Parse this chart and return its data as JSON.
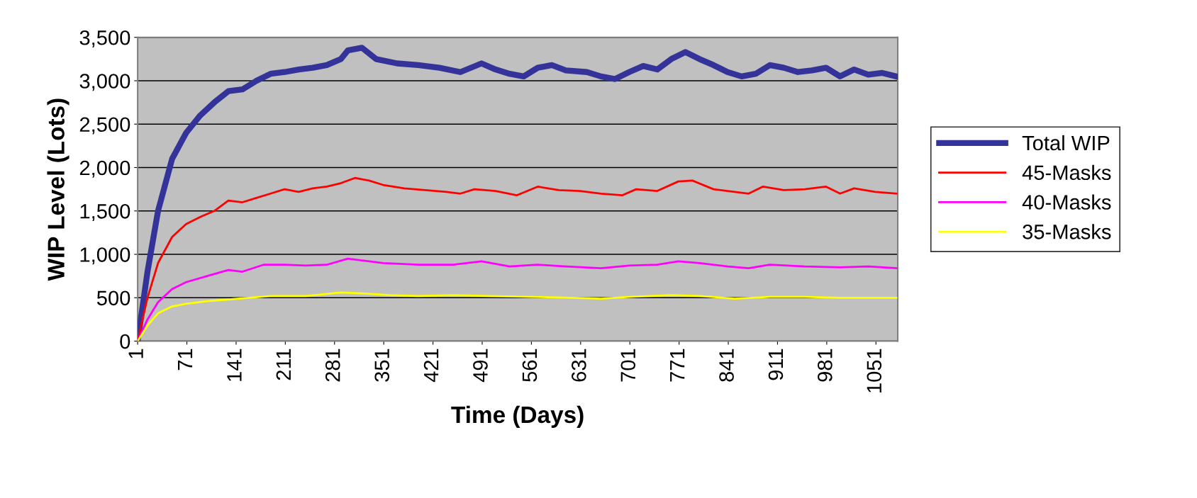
{
  "chart_data": {
    "type": "line",
    "xlabel": "Time (Days)",
    "ylabel": "WIP Level (Lots)",
    "xlim": [
      1,
      1082
    ],
    "xticks": [
      1,
      71,
      141,
      211,
      281,
      351,
      421,
      491,
      561,
      631,
      701,
      771,
      841,
      911,
      981,
      1051
    ],
    "ylim": [
      0,
      3500
    ],
    "yticks": [
      {
        "value": 0,
        "label": "0"
      },
      {
        "value": 500,
        "label": "500"
      },
      {
        "value": 1000,
        "label": "1,000"
      },
      {
        "value": 1500,
        "label": "1,500"
      },
      {
        "value": 2000,
        "label": "2,000"
      },
      {
        "value": 2500,
        "label": "2,500"
      },
      {
        "value": 3000,
        "label": "3,000"
      },
      {
        "value": 3500,
        "label": "3,500"
      }
    ],
    "grid": "y",
    "legend": "right",
    "marker": "none",
    "line_style": "solid",
    "series": [
      {
        "name": "Total WIP",
        "color": "#333399",
        "x": [
          1,
          15,
          30,
          50,
          70,
          90,
          110,
          130,
          150,
          170,
          190,
          210,
          230,
          250,
          270,
          290,
          300,
          320,
          340,
          370,
          400,
          430,
          460,
          490,
          510,
          530,
          550,
          570,
          590,
          610,
          640,
          660,
          680,
          700,
          720,
          740,
          760,
          780,
          800,
          820,
          840,
          860,
          880,
          900,
          920,
          940,
          960,
          980,
          1000,
          1020,
          1040,
          1060,
          1080
        ],
        "values": [
          0,
          800,
          1500,
          2100,
          2400,
          2600,
          2750,
          2880,
          2900,
          3000,
          3080,
          3100,
          3130,
          3150,
          3180,
          3250,
          3350,
          3380,
          3250,
          3200,
          3180,
          3150,
          3100,
          3200,
          3130,
          3080,
          3050,
          3150,
          3180,
          3120,
          3100,
          3050,
          3020,
          3100,
          3170,
          3130,
          3250,
          3330,
          3250,
          3180,
          3100,
          3050,
          3080,
          3180,
          3150,
          3100,
          3120,
          3150,
          3050,
          3130,
          3070,
          3090,
          3050
        ]
      },
      {
        "name": "45-Masks",
        "color": "#ff0000",
        "x": [
          1,
          15,
          30,
          50,
          70,
          90,
          110,
          130,
          150,
          170,
          190,
          210,
          230,
          250,
          270,
          290,
          310,
          330,
          350,
          380,
          410,
          440,
          460,
          480,
          510,
          540,
          570,
          600,
          630,
          660,
          690,
          710,
          740,
          770,
          790,
          820,
          850,
          870,
          890,
          920,
          950,
          980,
          1000,
          1020,
          1050,
          1080
        ],
        "values": [
          0,
          500,
          900,
          1200,
          1350,
          1430,
          1500,
          1620,
          1600,
          1650,
          1700,
          1750,
          1720,
          1760,
          1780,
          1820,
          1880,
          1850,
          1800,
          1760,
          1740,
          1720,
          1700,
          1750,
          1730,
          1680,
          1780,
          1740,
          1730,
          1700,
          1680,
          1750,
          1730,
          1840,
          1850,
          1750,
          1720,
          1700,
          1780,
          1740,
          1750,
          1780,
          1700,
          1760,
          1720,
          1700
        ]
      },
      {
        "name": "40-Masks",
        "color": "#ff00ff",
        "x": [
          1,
          15,
          30,
          50,
          70,
          100,
          130,
          150,
          180,
          210,
          240,
          270,
          300,
          320,
          350,
          400,
          450,
          490,
          530,
          570,
          610,
          660,
          700,
          740,
          770,
          800,
          840,
          870,
          900,
          950,
          1000,
          1040,
          1080
        ],
        "values": [
          0,
          250,
          450,
          600,
          680,
          750,
          820,
          800,
          880,
          880,
          870,
          880,
          950,
          930,
          900,
          880,
          880,
          920,
          860,
          880,
          860,
          840,
          870,
          880,
          920,
          900,
          860,
          840,
          880,
          860,
          850,
          860,
          840
        ]
      },
      {
        "name": "35-Masks",
        "color": "#ffff00",
        "x": [
          1,
          15,
          30,
          50,
          70,
          100,
          130,
          160,
          190,
          240,
          290,
          320,
          360,
          400,
          450,
          500,
          560,
          620,
          660,
          700,
          760,
          800,
          850,
          900,
          950,
          1000,
          1040,
          1080
        ],
        "values": [
          0,
          180,
          320,
          400,
          430,
          460,
          480,
          500,
          520,
          520,
          560,
          550,
          530,
          520,
          530,
          520,
          510,
          500,
          490,
          510,
          530,
          520,
          490,
          510,
          510,
          500,
          500,
          500
        ]
      }
    ]
  }
}
